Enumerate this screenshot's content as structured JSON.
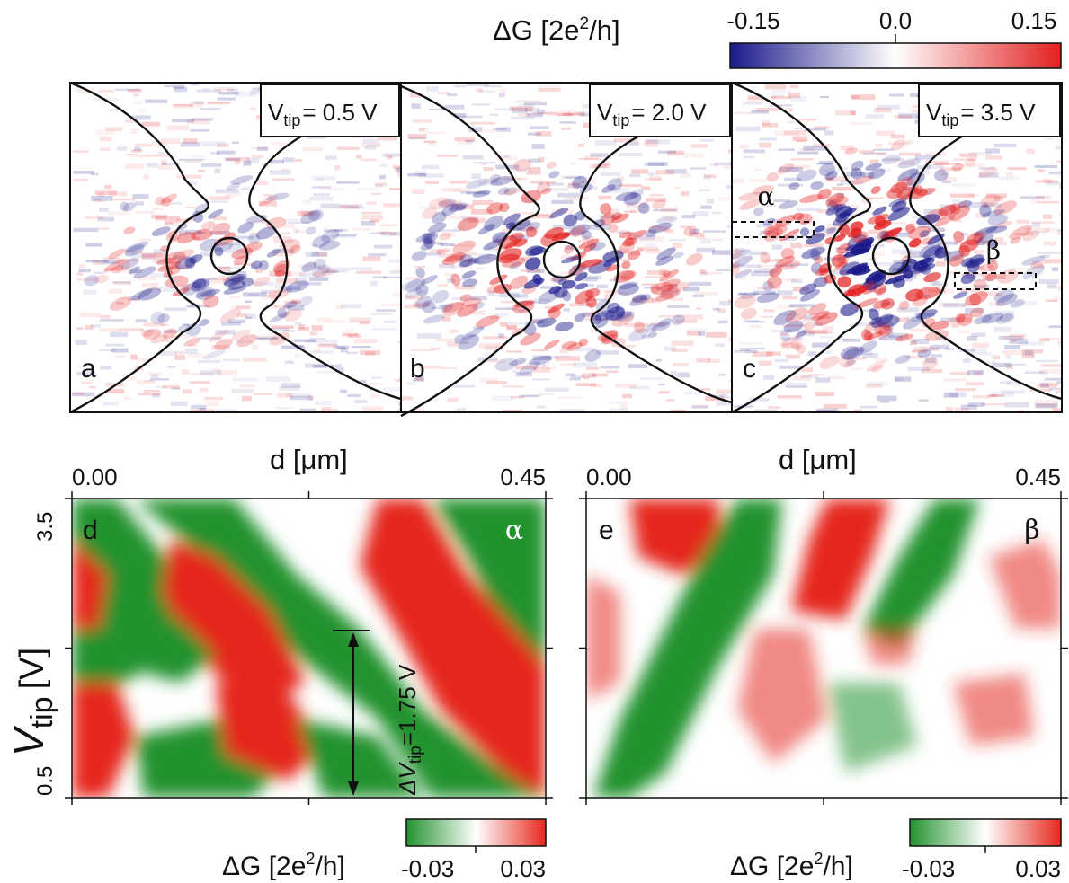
{
  "colors": {
    "top_neg": "#1a1a8a",
    "top_mid": "#ffffff",
    "top_pos": "#e32020",
    "bot_neg": "#22922e",
    "bot_mid": "#ffffff",
    "bot_pos": "#e5281c"
  },
  "top_colorbar": {
    "label_main": "ΔG [2e",
    "label_sup": "2",
    "label_end": "/h]",
    "ticks": [
      "-0.15",
      "0.0",
      "0.15"
    ]
  },
  "chart_data": [
    {
      "type": "heatmap",
      "panel": "a",
      "annotation_main": "V",
      "annotation_sub": "tip",
      "annotation_value": "= 0.5 V",
      "zlim": [
        -0.15,
        0.15
      ],
      "intensity": 0.45
    },
    {
      "type": "heatmap",
      "panel": "b",
      "annotation_main": "V",
      "annotation_sub": "tip",
      "annotation_value": "= 2.0 V",
      "zlim": [
        -0.15,
        0.15
      ],
      "intensity": 0.8
    },
    {
      "type": "heatmap",
      "panel": "c",
      "annotation_main": "V",
      "annotation_sub": "tip",
      "annotation_value": "= 3.5 V",
      "zlim": [
        -0.15,
        0.15
      ],
      "intensity": 1.0,
      "regions": [
        "α",
        "β"
      ]
    },
    {
      "type": "heatmap",
      "panel": "d",
      "region": "α",
      "xlabel": "d [μm]",
      "ylabel_main": "V",
      "ylabel_sub": "tip",
      "ylabel_unit": "[V]",
      "xlim": [
        0.0,
        0.45
      ],
      "ylim": [
        0.5,
        3.5
      ],
      "x_ticks": [
        "0.00",
        "0.45"
      ],
      "y_ticks": [
        "0.5",
        "3.5"
      ],
      "zlim": [
        -0.03,
        0.03
      ],
      "annotation_main": "ΔV",
      "annotation_sub": "tip",
      "annotation_value": "=1.75 V",
      "arrow_v": [
        0.5,
        2.25
      ],
      "colorbar": {
        "label_main": "ΔG [2e",
        "label_sup": "2",
        "label_end": "/h]",
        "ticks": [
          "-0.03",
          "0.03"
        ]
      }
    },
    {
      "type": "heatmap",
      "panel": "e",
      "region": "β",
      "xlabel": "d [μm]",
      "xlim": [
        0.0,
        0.45
      ],
      "ylim": [
        0.5,
        3.5
      ],
      "x_ticks": [
        "0.00",
        "0.45"
      ],
      "zlim": [
        -0.03,
        0.03
      ],
      "colorbar": {
        "label_main": "ΔG [2e",
        "label_sup": "2",
        "label_end": "/h]",
        "ticks": [
          "-0.03",
          "0.03"
        ]
      }
    }
  ]
}
